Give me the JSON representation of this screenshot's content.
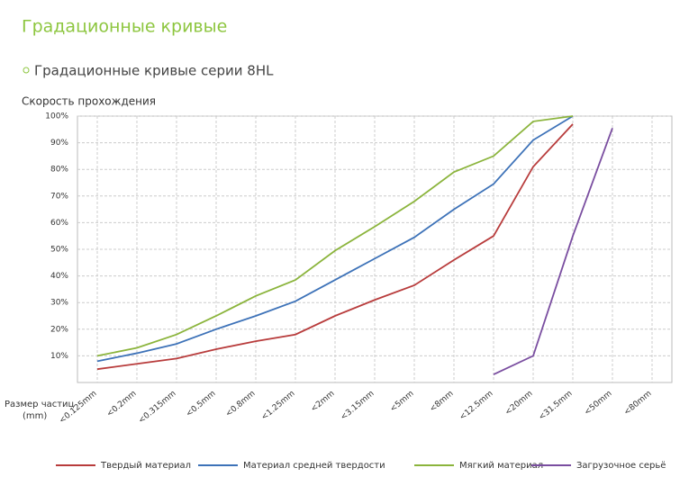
{
  "header": {
    "title": "Градационные кривые",
    "subtitle": "Градационные кривые серии 8HL"
  },
  "chart_data": {
    "type": "line",
    "ylabel": "Скорость прохождения",
    "xlabel": [
      "Размер частиц",
      "(mm)"
    ],
    "categories": [
      "<0.125mm",
      "<0.2mm",
      "<0.315mm",
      "<0.5mm",
      "<0.8mm",
      "<1.25mm",
      "<2mm",
      "<3.15mm",
      "<5mm",
      "<8mm",
      "<12.5mm",
      "<20mm",
      "<31.5mm",
      "<50mm",
      "<80mm"
    ],
    "series": [
      {
        "name": "Твердый материал",
        "color": "#b83c3c",
        "values": [
          5,
          7,
          9,
          12.5,
          15.5,
          18,
          25,
          31,
          36.5,
          46,
          55,
          81,
          97,
          null,
          null
        ]
      },
      {
        "name": "Материал средней твердости",
        "color": "#3d72b8",
        "values": [
          8,
          11,
          14.5,
          20,
          25,
          30.5,
          38.5,
          46.5,
          54.5,
          65,
          74.5,
          91,
          100,
          null,
          null
        ]
      },
      {
        "name": "Мягкий материал",
        "color": "#8bb43c",
        "values": [
          10,
          13,
          18,
          25,
          32.5,
          38.5,
          49.5,
          58.5,
          68,
          79,
          85,
          98,
          100,
          null,
          null
        ]
      },
      {
        "name": "Загрузочное серьё",
        "color": "#7a4ea0",
        "values": [
          null,
          null,
          null,
          null,
          null,
          null,
          null,
          null,
          null,
          null,
          3,
          10,
          55,
          95.5,
          null
        ]
      }
    ],
    "ylim": [
      0,
      100
    ],
    "yticks": [
      {
        "value": 10,
        "label": "10%"
      },
      {
        "value": 20,
        "label": "20%"
      },
      {
        "value": 30,
        "label": "30%"
      },
      {
        "value": 40,
        "label": "40%"
      },
      {
        "value": 50,
        "label": "50%"
      },
      {
        "value": 60,
        "label": "60%"
      },
      {
        "value": 70,
        "label": "70%"
      },
      {
        "value": 80,
        "label": "80%"
      },
      {
        "value": 90,
        "label": "90%"
      },
      {
        "value": 100,
        "label": "100%"
      }
    ],
    "grid": true,
    "legend": "bottom"
  }
}
